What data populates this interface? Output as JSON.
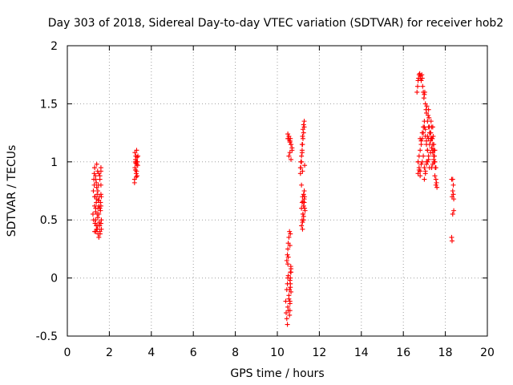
{
  "colors": {
    "series": "#ff0000",
    "axis": "#000000",
    "grid": "#a0a0a0",
    "background": "#ffffff"
  },
  "chart_data": {
    "type": "scatter",
    "title": "Day 303 of 2018, Sidereal Day-to-day VTEC variation (SDTVAR) for receiver hob2",
    "xlabel": "GPS time / hours",
    "ylabel": "SDTVAR / TECUs",
    "xlim": [
      0,
      20
    ],
    "ylim": [
      -0.5,
      2
    ],
    "grid": true,
    "marker": "+",
    "xticks": [
      0,
      2,
      4,
      6,
      8,
      10,
      12,
      14,
      16,
      18,
      20
    ],
    "yticks": [
      -0.5,
      0,
      0.5,
      1,
      1.5,
      2
    ],
    "xtick_labels": [
      "0",
      "2",
      "4",
      "6",
      "8",
      "10",
      "12",
      "14",
      "16",
      "18",
      "20"
    ],
    "ytick_labels": [
      "-0.5",
      "0",
      "0.5",
      "1",
      "1.5",
      "2"
    ],
    "series": [
      {
        "name": "hob2",
        "x": [
          1.22,
          1.24,
          1.26,
          1.28,
          1.3,
          1.3,
          1.32,
          1.34,
          1.35,
          1.36,
          1.38,
          1.38,
          1.4,
          1.42,
          1.42,
          1.44,
          1.46,
          1.46,
          1.48,
          1.5,
          1.5,
          1.52,
          1.54,
          1.55,
          1.56,
          1.58,
          1.6,
          1.62,
          1.25,
          1.28,
          1.3,
          1.32,
          1.35,
          1.38,
          1.4,
          1.42,
          1.45,
          1.48,
          1.5,
          1.52,
          1.55,
          1.58,
          1.6,
          1.3,
          1.35,
          1.4,
          1.45,
          1.5,
          1.55,
          1.6,
          1.3,
          1.35,
          1.4,
          1.45,
          1.5,
          1.55,
          1.6,
          1.62,
          1.6,
          1.6,
          1.62,
          3.2,
          3.22,
          3.24,
          3.26,
          3.28,
          3.3,
          3.3,
          3.32,
          3.34,
          3.36,
          3.2,
          3.25,
          3.3,
          3.35,
          3.22,
          3.28,
          3.32,
          3.24,
          3.3,
          3.26,
          10.4,
          10.42,
          10.45,
          10.48,
          10.5,
          10.52,
          10.55,
          10.58,
          10.6,
          10.62,
          10.65,
          10.5,
          10.55,
          10.6,
          10.65,
          10.7,
          10.55,
          10.6,
          10.65,
          10.7,
          10.45,
          10.48,
          10.5,
          10.52,
          10.55,
          10.58,
          10.6,
          10.62,
          10.65,
          10.45,
          10.48,
          10.5,
          10.52,
          10.5,
          10.52,
          10.55,
          10.58,
          10.6,
          10.62,
          10.64,
          10.5,
          10.55,
          10.6,
          10.62,
          10.65,
          10.6,
          10.62,
          10.65,
          10.62,
          10.6,
          11.1,
          11.12,
          11.15,
          11.18,
          11.2,
          11.22,
          11.25,
          11.28,
          11.15,
          11.18,
          11.2,
          11.22,
          11.25,
          11.28,
          11.3,
          11.32,
          11.15,
          11.18,
          11.2,
          11.22,
          11.25,
          11.28,
          11.3,
          11.1,
          11.12,
          11.15,
          11.18,
          11.2,
          11.22,
          11.25,
          11.28,
          11.3,
          11.2,
          11.25,
          11.28,
          11.15,
          11.2,
          11.25,
          11.18,
          11.22,
          16.65,
          16.68,
          16.7,
          16.72,
          16.75,
          16.78,
          16.8,
          16.82,
          16.85,
          16.88,
          16.9,
          16.92,
          16.95,
          16.98,
          17.0,
          17.02,
          17.05,
          17.08,
          17.1,
          17.12,
          17.15,
          17.18,
          17.2,
          17.22,
          17.25,
          17.28,
          17.3,
          17.32,
          17.35,
          17.38,
          17.4,
          17.42,
          17.45,
          17.48,
          17.5,
          17.52,
          17.55,
          16.7,
          16.75,
          16.8,
          16.85,
          16.9,
          16.95,
          17.0,
          17.05,
          17.1,
          17.15,
          17.2,
          17.25,
          17.3,
          17.35,
          17.4,
          17.45,
          17.5,
          16.7,
          16.75,
          16.8,
          16.85,
          16.9,
          16.95,
          17.0,
          17.05,
          17.1,
          17.15,
          17.2,
          17.25,
          17.3,
          17.35,
          17.4,
          17.45,
          17.5,
          17.55,
          16.8,
          16.85,
          16.9,
          16.95,
          17.0,
          17.05,
          17.1,
          17.15,
          17.2,
          17.25,
          17.3,
          17.35,
          17.4,
          17.45,
          16.7,
          16.75,
          16.8,
          17.0,
          17.05,
          17.1,
          17.15,
          17.2,
          17.25,
          17.3,
          17.35,
          17.4,
          17.45,
          17.5,
          17.55,
          17.58,
          17.6,
          18.3,
          18.32,
          18.35,
          18.38,
          18.4,
          18.3,
          18.35,
          18.4,
          18.32,
          18.38,
          18.35
        ],
        "y": [
          0.55,
          0.75,
          0.85,
          0.9,
          0.95,
          0.62,
          0.7,
          0.88,
          0.5,
          0.4,
          0.45,
          0.65,
          0.98,
          0.72,
          0.42,
          0.92,
          0.6,
          0.38,
          0.8,
          0.9,
          0.55,
          0.7,
          0.45,
          0.85,
          0.38,
          0.65,
          0.92,
          0.5,
          0.5,
          0.8,
          0.7,
          0.47,
          0.6,
          0.82,
          0.42,
          0.55,
          0.75,
          0.67,
          0.35,
          0.48,
          0.88,
          0.58,
          0.72,
          0.95,
          0.85,
          0.68,
          0.52,
          0.62,
          0.4,
          0.8,
          0.4,
          0.57,
          0.78,
          0.45,
          0.67,
          0.6,
          0.47,
          0.7,
          0.95,
          0.62,
          0.42,
          0.85,
          0.95,
          1.0,
          1.05,
          0.9,
          1.1,
          0.98,
          0.88,
          1.0,
          1.05,
          0.82,
          1.02,
          0.92,
          0.97,
          1.08,
          0.87,
          1.04,
          0.93,
          1.0,
          0.99,
          -0.2,
          -0.3,
          -0.35,
          -0.4,
          -0.25,
          -0.28,
          -0.15,
          -0.1,
          -0.2,
          -0.05,
          -0.12,
          1.2,
          1.22,
          1.18,
          1.15,
          1.12,
          1.05,
          1.08,
          1.02,
          1.1,
          -0.1,
          -0.05,
          0.0,
          0.02,
          -0.18,
          -0.32,
          -0.22,
          -0.08,
          0.05,
          0.15,
          0.2,
          0.25,
          0.3,
          0.12,
          0.18,
          0.35,
          0.4,
          0.28,
          0.38,
          0.1,
          1.24,
          1.2,
          1.17,
          1.2,
          1.15,
          -0.02,
          0.05,
          0.08,
          0.0,
          -0.28,
          0.95,
          1.0,
          1.05,
          1.1,
          1.15,
          1.2,
          1.25,
          1.3,
          0.6,
          0.65,
          0.7,
          0.55,
          0.5,
          0.75,
          0.6,
          0.58,
          0.45,
          0.5,
          0.42,
          0.55,
          0.62,
          0.65,
          0.7,
          0.9,
          0.95,
          1.0,
          1.15,
          1.22,
          1.28,
          1.32,
          1.35,
          0.97,
          0.92,
          0.72,
          0.68,
          0.8,
          0.48,
          0.53,
          1.08,
          0.66,
          1.6,
          1.65,
          1.7,
          1.72,
          1.75,
          1.76,
          1.72,
          1.74,
          1.7,
          1.75,
          1.72,
          1.65,
          1.6,
          1.55,
          1.58,
          1.6,
          1.5,
          1.45,
          1.42,
          1.48,
          1.35,
          1.4,
          1.45,
          1.38,
          1.3,
          1.25,
          1.2,
          1.35,
          1.3,
          1.2,
          1.15,
          1.22,
          1.1,
          1.05,
          1.0,
          0.95,
          0.85,
          1.0,
          1.05,
          1.1,
          1.15,
          1.2,
          1.25,
          1.3,
          1.22,
          1.18,
          1.1,
          1.05,
          1.15,
          1.25,
          1.2,
          1.3,
          1.15,
          1.1,
          0.9,
          0.95,
          0.92,
          0.98,
          1.0,
          1.05,
          0.95,
          0.9,
          1.0,
          1.1,
          1.2,
          1.3,
          1.25,
          1.2,
          1.1,
          1.05,
          1.0,
          0.95,
          1.2,
          1.18,
          1.25,
          1.3,
          1.35,
          1.28,
          1.15,
          1.22,
          1.3,
          1.25,
          1.18,
          1.12,
          1.08,
          1.02,
          1.0,
          0.93,
          0.88,
          0.85,
          0.92,
          0.98,
          1.0,
          1.02,
          0.95,
          1.08,
          0.95,
          0.98,
          1.0,
          0.88,
          0.8,
          0.82,
          0.78,
          0.85,
          0.7,
          0.75,
          0.72,
          0.58,
          0.35,
          0.55,
          0.68,
          0.32,
          0.8,
          0.85
        ]
      }
    ]
  }
}
